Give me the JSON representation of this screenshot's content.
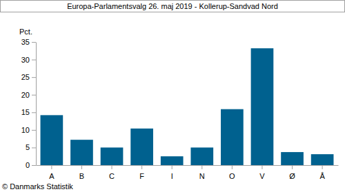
{
  "chart_data": {
    "type": "bar",
    "title": "Europa-Parlamentsvalg 26. maj 2019 - Kollerup-Sandvad Nord",
    "y_label": "Pct.",
    "source": "© Danmarks Statistik",
    "categories": [
      "A",
      "B",
      "C",
      "F",
      "I",
      "N",
      "O",
      "V",
      "Ø",
      "Å"
    ],
    "values": [
      14.2,
      7.2,
      5.0,
      10.4,
      2.5,
      5.0,
      15.9,
      33.2,
      3.7,
      3.1
    ],
    "color": "#00618f",
    "ylim": [
      0,
      35
    ],
    "yticks": [
      0,
      5,
      10,
      15,
      20,
      25,
      30,
      35
    ],
    "grid": false
  }
}
